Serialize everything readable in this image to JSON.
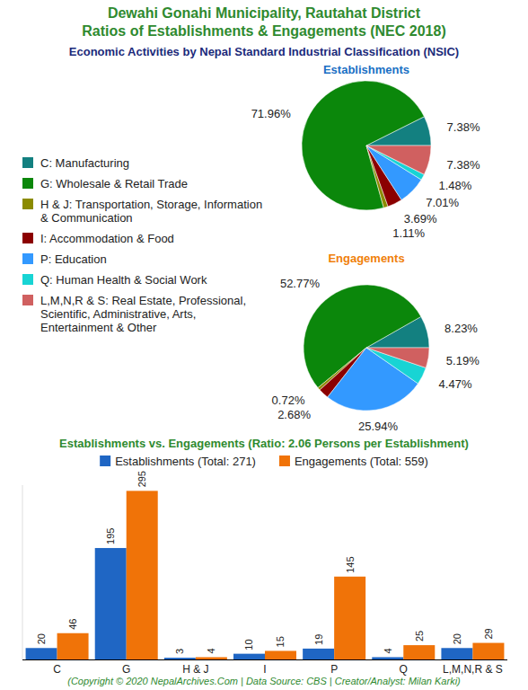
{
  "header": {
    "title": [
      "Dewahi Gonahi Municipality, Rautahat District",
      "Ratios of Establishments & Engagements (NEC 2018)"
    ],
    "subtitle": "Economic Activities by Nepal Standard Industrial Classification (NSIC)"
  },
  "chart_data": [
    {
      "type": "pie",
      "categories": [
        "C: Manufacturing",
        "G: Wholesale & Retail Trade",
        "H & J: Transportation, Storage, Information & Communication",
        "I: Accommodation & Food",
        "P: Education",
        "Q: Human Health & Social Work",
        "L,M,N,R & S: Real Estate, Professional, Scientific, Administrative, Arts, Entertainment & Other"
      ],
      "colors": [
        "#138080",
        "#0b870b",
        "#8b8b00",
        "#8b0000",
        "#3399ff",
        "#18d4d4",
        "#d06060"
      ],
      "legend": "left",
      "data_labels": true,
      "series": [
        {
          "name": "Establishments",
          "values": [
            7.38,
            71.96,
            1.11,
            3.69,
            7.01,
            1.48,
            7.38
          ],
          "value_labels": [
            "7.38%",
            "71.96%",
            "1.11%",
            "3.69%",
            "7.01%",
            "1.48%",
            "7.38%"
          ]
        },
        {
          "name": "Engagements",
          "values": [
            8.23,
            52.77,
            0.72,
            2.68,
            25.94,
            4.47,
            5.19
          ],
          "value_labels": [
            "8.23%",
            "52.77%",
            "0.72%",
            "2.68%",
            "25.94%",
            "4.47%",
            "5.19%"
          ]
        }
      ]
    },
    {
      "type": "bar",
      "title": "Establishments vs. Engagements (Ratio: 2.06 Persons per Establishment)",
      "categories": [
        "C",
        "G",
        "H & J",
        "I",
        "P",
        "Q",
        "L,M,N,R & S"
      ],
      "series": [
        {
          "name": "Establishments (Total: 271)",
          "color": "#1f66c4",
          "values": [
            20,
            195,
            3,
            10,
            19,
            4,
            20
          ]
        },
        {
          "name": "Engagements (Total: 559)",
          "color": "#f07308",
          "values": [
            46,
            295,
            4,
            15,
            145,
            25,
            29
          ]
        }
      ],
      "ylim": [
        0,
        305
      ],
      "tick_labels": "x",
      "data_labels": true,
      "legend": "top"
    }
  ],
  "footer": "(Copyright © 2020 NepalArchives.Com | Data Source: CBS | Creator/Analyst: Milan Karki)"
}
